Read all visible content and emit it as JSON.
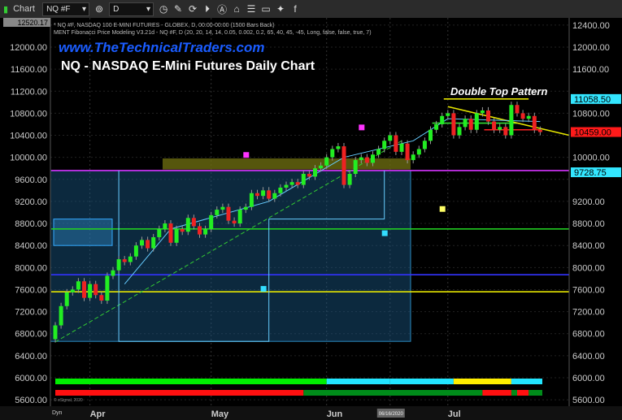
{
  "toolbar": {
    "title": "Chart",
    "symbol": "NQ #F",
    "interval": "D",
    "icons": [
      "link-icon",
      "pencil-icon",
      "refresh-icon",
      "play-icon",
      "alert-icon",
      "tag-icon",
      "list-icon",
      "comment-icon",
      "twitter-icon",
      "facebook-icon"
    ]
  },
  "header": {
    "line1": "* NQ #F, NASDAQ 100 E-MINI FUTURES - GLOBEX, D, 00:00-00:00 (1500 Bars Back)",
    "line2": "MENT Fibonacci Price Modeling V3.21d - NQ #F, D (20, 20, 14, 14, 0.05, 0.002, 0.2, 65, 40, 45, -45, Long, false, false, true, 7)",
    "website": "www.TheTechnicalTraders.com",
    "title": "NQ - NASDAQ E-Mini Futures Daily Chart",
    "annotation": "Double Top Pattern",
    "copyright": "© eSignal, 2020",
    "dyn": "Dyn"
  },
  "chart_data": {
    "type": "candlestick",
    "title": "NQ - NASDAQ E-Mini Futures Daily Chart",
    "ylim": [
      5500,
      12520.17
    ],
    "yticks": [
      5600,
      6000,
      6400,
      6800,
      7200,
      7600,
      8000,
      8400,
      8800,
      9200,
      9600,
      10000,
      10400,
      10800,
      11200,
      11600,
      12000,
      12400
    ],
    "xlabels": [
      {
        "label": "Apr",
        "i": 6
      },
      {
        "label": "May",
        "i": 27
      },
      {
        "label": "Jun",
        "i": 47
      },
      {
        "label": "06/16/2020",
        "i": 58
      },
      {
        "label": "Jul",
        "i": 68
      }
    ],
    "closes": [
      6950,
      7300,
      7550,
      7600,
      7750,
      7450,
      7700,
      7500,
      7400,
      7850,
      7950,
      8150,
      8100,
      8200,
      8400,
      8500,
      8350,
      8550,
      8700,
      8800,
      8450,
      8700,
      8650,
      8900,
      8750,
      8600,
      8700,
      8950,
      9050,
      9100,
      8850,
      8800,
      9050,
      9100,
      9350,
      9300,
      9400,
      9250,
      9350,
      9450,
      9500,
      9550,
      9500,
      9700,
      9650,
      9800,
      9850,
      10000,
      10150,
      10200,
      9500,
      9700,
      9950,
      10000,
      9900,
      10050,
      10150,
      10300,
      10400,
      10100,
      10250,
      9950,
      10050,
      10150,
      10300,
      10500,
      10600,
      10750,
      10800,
      10400,
      10550,
      10700,
      10500,
      10800,
      10850,
      10650,
      10500,
      10550,
      10400,
      10950,
      10800,
      10700,
      10750,
      10500,
      10459
    ],
    "first_open": 6700,
    "price_labels": [
      {
        "value": "12520.17",
        "price": 12520.17,
        "color": "#888888"
      },
      {
        "value": "11058.50",
        "price": 11058.5,
        "color": "#33e6ff"
      },
      {
        "value": "10459.00",
        "price": 10459,
        "color": "#ff1a1a"
      },
      {
        "value": "9728.75",
        "price": 9728.75,
        "color": "#33e6ff"
      }
    ],
    "hlines": [
      {
        "price": 11058.5,
        "color": "#e6e600",
        "from": 68,
        "to": 82
      },
      {
        "price": 9760,
        "color": "#d633ff",
        "from": 0,
        "to": 90
      },
      {
        "price": 7560,
        "color": "#e6e600",
        "from": 0,
        "to": 90
      },
      {
        "price": 7870,
        "color": "#3333ff",
        "from": 0,
        "to": 90
      },
      {
        "price": 8700,
        "color": "#22cc22",
        "from": 0,
        "to": 90
      },
      {
        "price": 10620,
        "color": "#33dd33",
        "from": 66,
        "to": 80
      },
      {
        "price": 10500,
        "color": "#ff2222",
        "from": 75,
        "to": 84
      }
    ],
    "bars_top": [
      {
        "from": 0,
        "to": 47,
        "color": "#00ee00"
      },
      {
        "from": 47,
        "to": 58,
        "color": "#22e6ff"
      },
      {
        "from": 58,
        "to": 69,
        "color": "#22e6ff"
      },
      {
        "from": 69,
        "to": 79,
        "color": "#ffee00"
      },
      {
        "from": 79,
        "to": 86,
        "color": "#22e6ff"
      }
    ],
    "bars_bottom": [
      {
        "from": 0,
        "to": 43,
        "color": "#ff1010"
      },
      {
        "from": 43,
        "to": 74,
        "color": "#008c1a"
      },
      {
        "from": 74,
        "to": 79,
        "color": "#ff1010"
      },
      {
        "from": 79,
        "to": 80,
        "color": "#008c1a"
      },
      {
        "from": 80,
        "to": 82,
        "color": "#ff1010"
      },
      {
        "from": 82,
        "to": 99,
        "color": "#008c1a"
      }
    ],
    "colors": {
      "up": "#22ee22",
      "down": "#ee2222",
      "background": "#000000",
      "grid": "#222222"
    }
  }
}
